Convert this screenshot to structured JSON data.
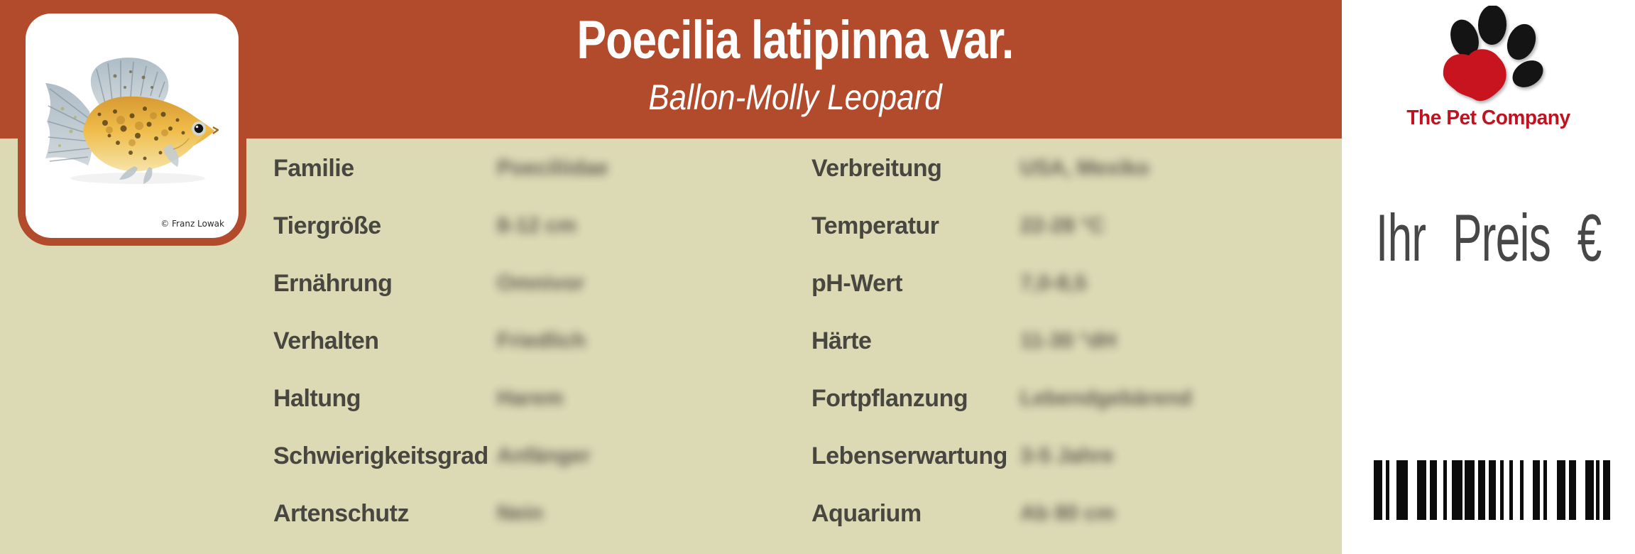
{
  "header": {
    "title": "Poecilia latipinna var.",
    "subtitle": "Ballon-Molly Leopard"
  },
  "photo": {
    "subject": "Ballon-Molly Leopard fish, golden with dark leopard spots and grey sailfin",
    "credit": "© Franz Lowak"
  },
  "table": {
    "left": [
      {
        "label": "Familie",
        "value": "Poeciliidae"
      },
      {
        "label": "Tiergröße",
        "value": "8-12 cm"
      },
      {
        "label": "Ernährung",
        "value": "Omnivor"
      },
      {
        "label": "Verhalten",
        "value": "Friedlich"
      },
      {
        "label": "Haltung",
        "value": "Harem"
      },
      {
        "label": "Schwierigkeitsgrad",
        "value": "Anfänger"
      },
      {
        "label": "Artenschutz",
        "value": "Nein"
      }
    ],
    "right": [
      {
        "label": "Verbreitung",
        "value": "USA, Mexiko"
      },
      {
        "label": "Temperatur",
        "value": "22-28 °C"
      },
      {
        "label": "pH-Wert",
        "value": "7,0-8,5"
      },
      {
        "label": "Härte",
        "value": "11-30 °dH"
      },
      {
        "label": "Fortpflanzung",
        "value": "Lebendgebärend"
      },
      {
        "label": "Lebenserwartung",
        "value": "3-5 Jahre"
      },
      {
        "label": "Aquarium",
        "value": "Ab 80 cm"
      }
    ],
    "values_blurred": true
  },
  "side_panel": {
    "brand": "The Pet Company",
    "price_label": "Ihr Preis €",
    "paw_icon": "paw-print-icon",
    "barcode_pattern": [
      12,
      5,
      5,
      10,
      16,
      13,
      13,
      5,
      10,
      9,
      5,
      7,
      15,
      3,
      14,
      5,
      10,
      5,
      10,
      6,
      5,
      8,
      5,
      10,
      5,
      13,
      10,
      5,
      5,
      14,
      12,
      5,
      10,
      13,
      12,
      3,
      5,
      5,
      10
    ]
  },
  "colors": {
    "band": "#b24a2c",
    "body_beige": "#dcd9b5",
    "panel_white": "#ffffff",
    "label_text": "#47473f",
    "brand_red": "#c0131f",
    "price_text": "#474747"
  }
}
